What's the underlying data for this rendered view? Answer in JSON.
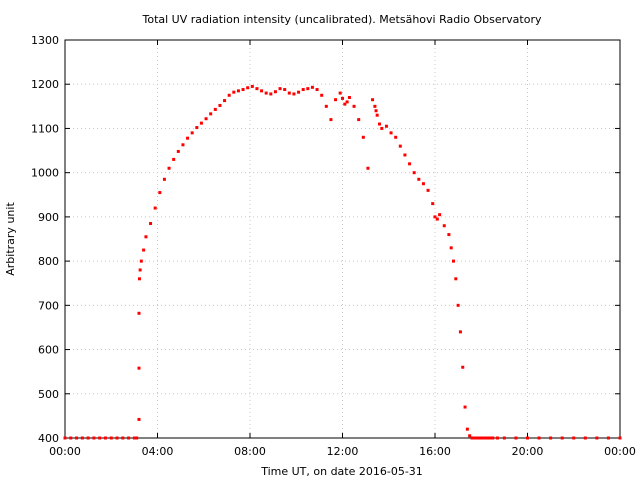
{
  "chart_data": {
    "type": "scatter",
    "title": "Total UV radiation intensity (uncalibrated). Metsähovi Radio Observatory",
    "xlabel": "Time UT, on date 2016-05-31",
    "ylabel": "Arbitrary unit",
    "xlim": [
      0,
      24
    ],
    "ylim": [
      400,
      1300
    ],
    "x_ticks": [
      {
        "value": 0,
        "label": "00:00"
      },
      {
        "value": 4,
        "label": "04:00"
      },
      {
        "value": 8,
        "label": "08:00"
      },
      {
        "value": 12,
        "label": "12:00"
      },
      {
        "value": 16,
        "label": "16:00"
      },
      {
        "value": 20,
        "label": "20:00"
      },
      {
        "value": 24,
        "label": "00:00"
      }
    ],
    "y_ticks": [
      400,
      500,
      600,
      700,
      800,
      900,
      1000,
      1100,
      1200,
      1300
    ],
    "grid": true,
    "marker_color": "#ff0000",
    "series": [
      {
        "x": [
          0.0,
          0.25,
          0.5,
          0.75,
          1.0,
          1.25,
          1.5,
          1.75,
          2.0,
          2.25,
          2.5,
          2.75,
          3.0,
          3.1,
          3.2,
          3.2,
          3.2,
          3.22,
          3.25,
          3.3,
          3.4,
          3.5,
          3.7,
          3.9,
          4.1,
          4.3,
          4.5,
          4.7,
          4.9,
          5.1,
          5.3,
          5.5,
          5.7,
          5.9,
          6.1,
          6.3,
          6.5,
          6.7,
          6.9,
          7.1,
          7.3,
          7.5,
          7.7,
          7.9,
          8.1,
          8.3,
          8.5,
          8.7,
          8.9,
          9.1,
          9.3,
          9.5,
          9.7,
          9.9,
          10.1,
          10.3,
          10.5,
          10.7,
          10.9,
          11.1,
          11.3,
          11.5,
          11.7,
          11.9,
          12.0,
          12.1,
          12.2,
          12.3,
          12.5,
          12.7,
          12.9,
          13.1,
          13.3,
          13.4,
          13.45,
          13.5,
          13.6,
          13.7,
          13.9,
          14.1,
          14.3,
          14.5,
          14.7,
          14.9,
          15.1,
          15.3,
          15.5,
          15.7,
          15.9,
          16.0,
          16.1,
          16.2,
          16.4,
          16.6,
          16.7,
          16.8,
          16.9,
          17.0,
          17.1,
          17.2,
          17.3,
          17.4,
          17.5,
          17.6,
          17.7,
          17.8,
          17.9,
          18.0,
          18.1,
          18.2,
          18.3,
          18.4,
          18.5,
          18.7,
          19.0,
          19.5,
          20.0,
          20.5,
          21.0,
          21.5,
          22.0,
          22.5,
          23.0,
          23.5,
          24.0
        ],
        "y": [
          400,
          400,
          400,
          400,
          400,
          400,
          400,
          400,
          400,
          400,
          400,
          400,
          400,
          400,
          442,
          558,
          682,
          760,
          780,
          800,
          825,
          855,
          885,
          920,
          955,
          985,
          1010,
          1030,
          1048,
          1063,
          1078,
          1090,
          1102,
          1112,
          1122,
          1133,
          1143,
          1152,
          1163,
          1175,
          1182,
          1185,
          1188,
          1192,
          1195,
          1190,
          1185,
          1180,
          1178,
          1183,
          1190,
          1188,
          1180,
          1178,
          1182,
          1188,
          1190,
          1193,
          1188,
          1175,
          1150,
          1120,
          1165,
          1180,
          1168,
          1155,
          1160,
          1170,
          1150,
          1120,
          1080,
          1010,
          1165,
          1150,
          1140,
          1130,
          1110,
          1100,
          1105,
          1090,
          1080,
          1060,
          1040,
          1020,
          1000,
          985,
          975,
          960,
          930,
          900,
          895,
          905,
          880,
          860,
          830,
          800,
          760,
          700,
          640,
          560,
          470,
          420,
          405,
          400,
          400,
          400,
          400,
          400,
          400,
          400,
          400,
          400,
          400,
          400,
          400,
          400,
          400,
          400,
          400,
          400,
          400,
          400,
          400,
          400,
          400
        ]
      }
    ]
  }
}
